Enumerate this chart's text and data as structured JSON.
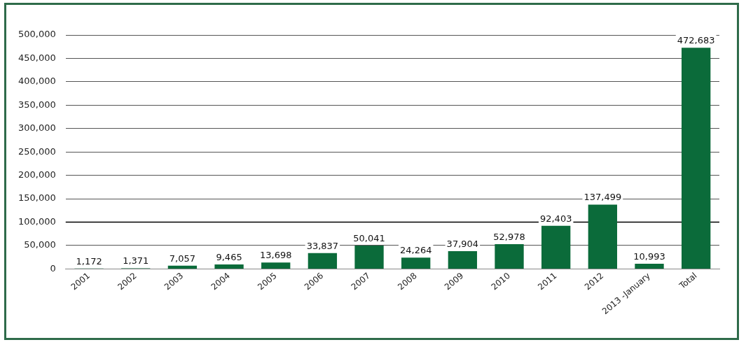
{
  "chart_data": {
    "type": "bar",
    "categories": [
      "2001",
      "2002",
      "2003",
      "2004",
      "2005",
      "2006",
      "2007",
      "2008",
      "2009",
      "2010",
      "2011",
      "2012",
      "2013 -January",
      "Total"
    ],
    "values": [
      1172,
      1371,
      7057,
      9465,
      13698,
      33837,
      50041,
      24264,
      37904,
      52978,
      92403,
      137499,
      10993,
      472683
    ],
    "value_labels": [
      "1,172",
      "1,371",
      "7,057",
      "9,465",
      "13,698",
      "33,837",
      "50,041",
      "24,264",
      "37,904",
      "52,978",
      "92,403",
      "137,499",
      "10,993",
      "472,683"
    ],
    "color": "#0b6b3a",
    "ylim": [
      0,
      500000
    ],
    "yticks": [
      {
        "value": 0,
        "label": "0"
      },
      {
        "value": 50000,
        "label": "50,000"
      },
      {
        "value": 100000,
        "label": "100,000"
      },
      {
        "value": 150000,
        "label": "150,000"
      },
      {
        "value": 200000,
        "label": "200,000"
      },
      {
        "value": 250000,
        "label": "250,000"
      },
      {
        "value": 300000,
        "label": "300,000"
      },
      {
        "value": 350000,
        "label": "350,000"
      },
      {
        "value": 400000,
        "label": "400,000"
      },
      {
        "value": 450000,
        "label": "450,000"
      },
      {
        "value": 500000,
        "label": "500,000"
      }
    ],
    "grid": "y",
    "legend": false,
    "ref_lines": [
      {
        "axis": "y",
        "value": 100000,
        "color": "#000000"
      }
    ]
  }
}
